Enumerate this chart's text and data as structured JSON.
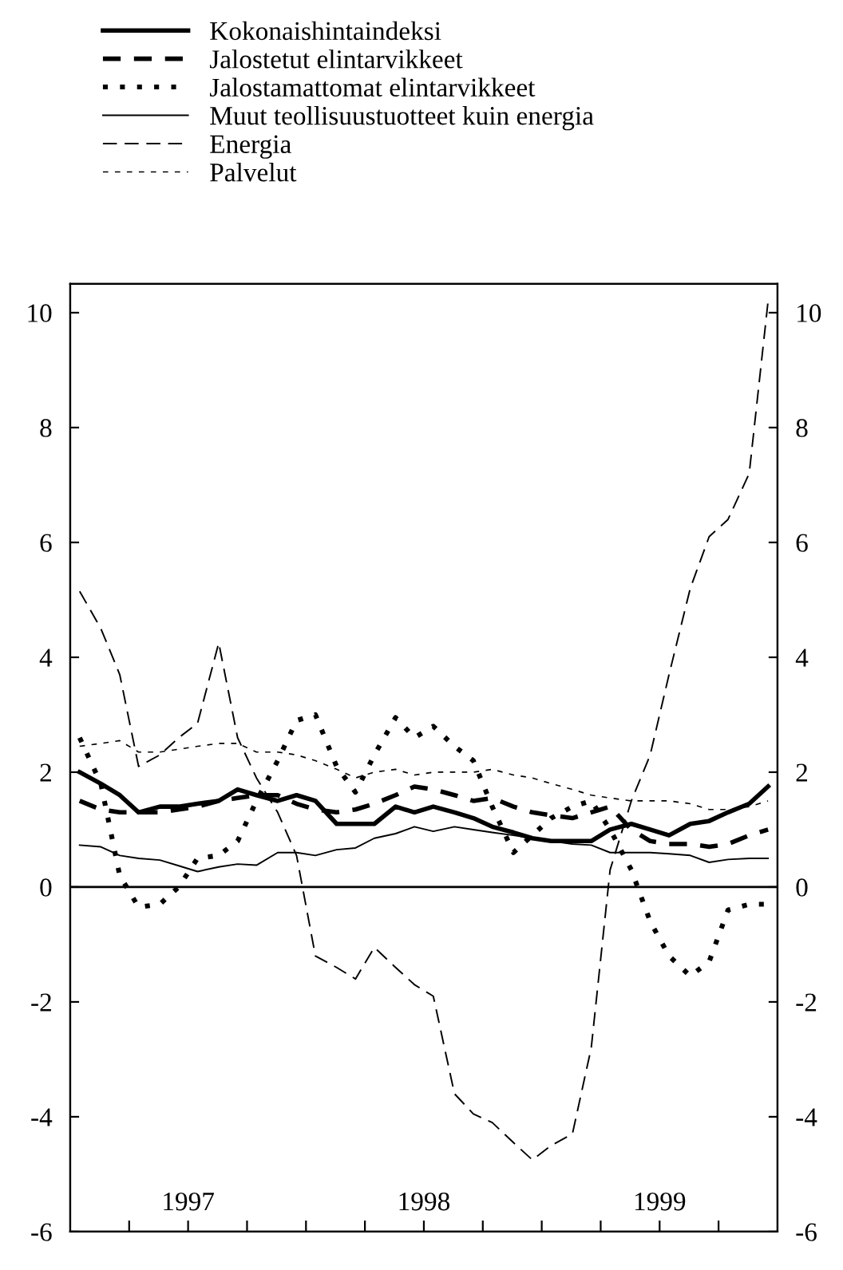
{
  "chart_data": {
    "type": "line",
    "x": [
      1997.04,
      1997.13,
      1997.21,
      1997.29,
      1997.38,
      1997.46,
      1997.54,
      1997.63,
      1997.71,
      1997.79,
      1997.88,
      1997.96,
      1998.04,
      1998.13,
      1998.21,
      1998.29,
      1998.38,
      1998.46,
      1998.54,
      1998.63,
      1998.71,
      1998.79,
      1998.88,
      1998.96,
      1999.04,
      1999.13,
      1999.21,
      1999.29,
      1999.38,
      1999.46,
      1999.54,
      1999.63,
      1999.71,
      1999.79,
      1999.88,
      1999.96
    ],
    "series": [
      {
        "name": "Kokonaishintaindeksi",
        "color": "#000000",
        "line_style": "solid",
        "values": [
          2.0,
          1.8,
          1.6,
          1.3,
          1.4,
          1.4,
          1.45,
          1.5,
          1.7,
          1.6,
          1.5,
          1.6,
          1.5,
          1.1,
          1.1,
          1.1,
          1.4,
          1.3,
          1.4,
          1.3,
          1.2,
          1.05,
          0.95,
          0.85,
          0.8,
          0.8,
          0.8,
          1.0,
          1.1,
          1.0,
          0.9,
          1.1,
          1.15,
          1.3,
          1.45,
          1.75
        ]
      },
      {
        "name": "Jalostetut elintarvikkeet",
        "color": "#000000",
        "line_style": "dashed",
        "values": [
          1.5,
          1.35,
          1.3,
          1.3,
          1.3,
          1.35,
          1.4,
          1.5,
          1.55,
          1.6,
          1.6,
          1.45,
          1.35,
          1.3,
          1.35,
          1.45,
          1.6,
          1.75,
          1.7,
          1.6,
          1.5,
          1.55,
          1.4,
          1.3,
          1.25,
          1.2,
          1.3,
          1.4,
          1.0,
          0.8,
          0.75,
          0.75,
          0.7,
          0.75,
          0.9,
          1.0
        ]
      },
      {
        "name": "Jalostamattomat elintarvikkeet",
        "color": "#000000",
        "line_style": "dotted",
        "values": [
          2.6,
          1.8,
          0.2,
          -0.35,
          -0.3,
          0.0,
          0.5,
          0.55,
          0.8,
          1.5,
          2.2,
          2.9,
          3.0,
          2.1,
          1.65,
          2.3,
          2.95,
          2.6,
          2.8,
          2.45,
          2.2,
          1.4,
          0.6,
          0.9,
          1.2,
          1.4,
          1.5,
          1.0,
          0.3,
          -0.6,
          -1.2,
          -1.55,
          -1.3,
          -0.4,
          -0.3,
          -0.3
        ]
      },
      {
        "name": "Muut teollisuustuotteet kuin energia",
        "color": "#000000",
        "line_style": "solid",
        "values": [
          0.73,
          0.7,
          0.55,
          0.5,
          0.47,
          0.37,
          0.27,
          0.35,
          0.4,
          0.38,
          0.6,
          0.6,
          0.55,
          0.65,
          0.68,
          0.85,
          0.93,
          1.05,
          0.97,
          1.05,
          1.0,
          0.95,
          0.9,
          0.85,
          0.8,
          0.75,
          0.73,
          0.6,
          0.6,
          0.6,
          0.58,
          0.55,
          0.43,
          0.48,
          0.5,
          0.5
        ]
      },
      {
        "name": "Energia",
        "color": "#000000",
        "line_style": "dashed",
        "values": [
          5.15,
          4.5,
          3.7,
          2.1,
          2.3,
          2.6,
          2.85,
          4.25,
          2.6,
          1.9,
          1.3,
          0.55,
          -1.2,
          -1.4,
          -1.6,
          -1.05,
          -1.4,
          -1.7,
          -1.9,
          -3.6,
          -3.95,
          -4.1,
          -4.45,
          -4.75,
          -4.5,
          -4.3,
          -2.8,
          0.3,
          1.5,
          2.3,
          3.7,
          5.2,
          6.1,
          6.4,
          7.2,
          10.2
        ]
      },
      {
        "name": "Palvelut",
        "color": "#000000",
        "line_style": "dashed",
        "values": [
          2.45,
          2.5,
          2.55,
          2.35,
          2.35,
          2.4,
          2.45,
          2.5,
          2.5,
          2.35,
          2.35,
          2.3,
          2.2,
          2.05,
          1.9,
          2.0,
          2.05,
          1.95,
          2.0,
          2.0,
          2.0,
          2.05,
          1.95,
          1.9,
          1.8,
          1.7,
          1.6,
          1.55,
          1.5,
          1.5,
          1.5,
          1.45,
          1.35,
          1.35,
          1.4,
          1.5
        ]
      }
    ],
    "xlim": [
      1997,
      2000
    ],
    "xticks": [
      {
        "value": 1997.25,
        "label": null
      },
      {
        "value": 1997.5,
        "label": "1997"
      },
      {
        "value": 1997.75,
        "label": null
      },
      {
        "value": 1998,
        "label": null
      },
      {
        "value": 1998.25,
        "label": null
      },
      {
        "value": 1998.5,
        "label": "1998"
      },
      {
        "value": 1998.75,
        "label": null
      },
      {
        "value": 1999,
        "label": null
      },
      {
        "value": 1999.25,
        "label": null
      },
      {
        "value": 1999.5,
        "label": "1999"
      },
      {
        "value": 1999.75,
        "label": null
      }
    ],
    "ylim": [
      -6,
      10.5
    ],
    "yticks": [
      -6,
      -4,
      -2,
      0,
      2,
      4,
      6,
      8,
      10
    ],
    "y2lim": [
      -6,
      10.5
    ],
    "y2ticks": [
      -6,
      -4,
      -2,
      0,
      2,
      4,
      6,
      8,
      10
    ],
    "ref_lines": [
      {
        "axis": "y",
        "value": 0,
        "label": null,
        "color": "#000000",
        "line_style": "solid"
      }
    ],
    "grid": false,
    "legend": "top",
    "marker": "none"
  }
}
